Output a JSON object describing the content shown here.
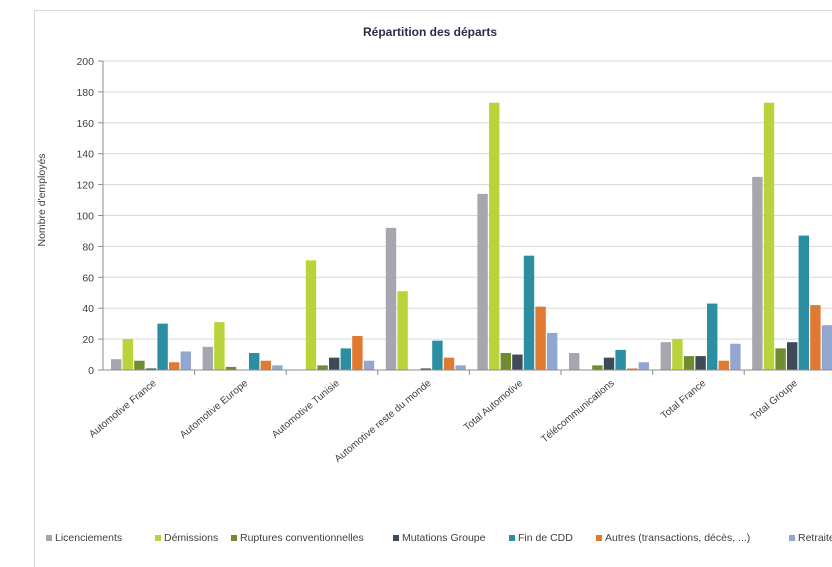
{
  "chart_data": {
    "type": "bar",
    "title": "Répartition des départs",
    "ylabel": "Nombre d'employés",
    "xlabel": "",
    "ylim": [
      0,
      200
    ],
    "yticks": [
      0,
      20,
      40,
      60,
      80,
      100,
      120,
      140,
      160,
      180,
      200
    ],
    "grid": true,
    "legend_position": "bottom",
    "categories": [
      "Automotive France",
      "Automotive Europe",
      "Automotive Tunisie",
      "Automotive reste du monde",
      "Total Automotive",
      "Télécommunications",
      "Total France",
      "Total Groupe"
    ],
    "series": [
      {
        "name": "Licenciements",
        "color": "#a6a6ae",
        "values": [
          7,
          15,
          0,
          92,
          114,
          11,
          18,
          125
        ]
      },
      {
        "name": "Démissions",
        "color": "#b8d43a",
        "values": [
          20,
          31,
          71,
          51,
          173,
          0,
          20,
          173
        ]
      },
      {
        "name": "Ruptures conventionnelles",
        "color": "#6f8c31",
        "values": [
          6,
          2,
          3,
          0,
          11,
          3,
          9,
          14
        ]
      },
      {
        "name": "Mutations Groupe",
        "color": "#3f4a57",
        "values": [
          1,
          0,
          8,
          1,
          10,
          8,
          9,
          18
        ]
      },
      {
        "name": "Fin de CDD",
        "color": "#2b8ea3",
        "values": [
          30,
          11,
          14,
          19,
          74,
          13,
          43,
          87
        ]
      },
      {
        "name": "Autres (transactions, décès, ...)",
        "color": "#e07a33",
        "values": [
          5,
          6,
          22,
          8,
          41,
          1,
          6,
          42
        ]
      },
      {
        "name": "Retraite",
        "color": "#93a6cf",
        "values": [
          12,
          3,
          6,
          3,
          24,
          5,
          17,
          29
        ]
      }
    ]
  }
}
